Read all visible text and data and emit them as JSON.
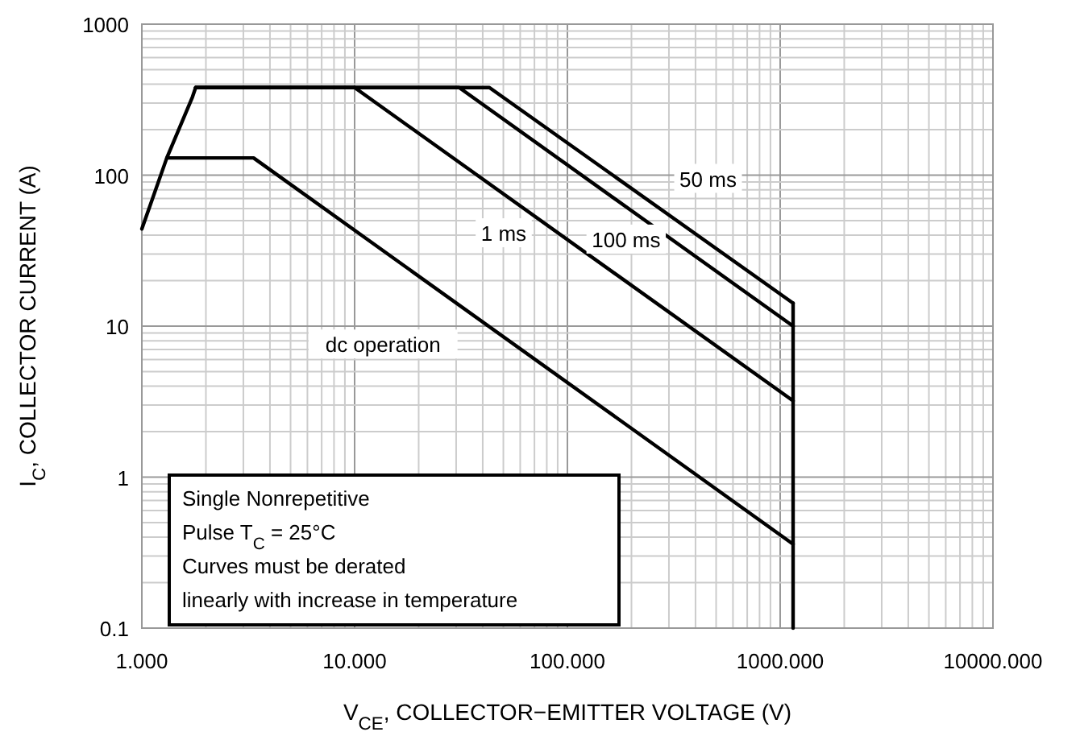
{
  "chart_data": {
    "type": "line",
    "xlabel": "V$_{CE}$, COLLECTOR−EMITTER VOLTAGE (V)",
    "ylabel": "I$_{C}$, COLLECTOR CURRENT (A)",
    "log": "xy",
    "grid": true,
    "marker": "none",
    "line_style": "solid",
    "xlim": [
      1,
      10000
    ],
    "xticks": [
      {
        "value": 1,
        "label": "1.000"
      },
      {
        "value": 10,
        "label": "10.000"
      },
      {
        "value": 100,
        "label": "100.000"
      },
      {
        "value": 1000,
        "label": "1000.000"
      },
      {
        "value": 10000,
        "label": "10000.000"
      }
    ],
    "ylim": [
      0.1,
      1000
    ],
    "yticks": [
      0.1,
      1,
      10,
      100,
      1000
    ],
    "series": [
      {
        "color": "#000000",
        "x": [
          1,
          1.31,
          1.73,
          1.79
        ],
        "values": [
          44,
          130,
          330,
          380
        ]
      },
      {
        "name": "dc operation",
        "color": "#000000",
        "x": [
          1.31,
          3.35,
          1150
        ],
        "values": [
          130,
          130,
          0.36
        ]
      },
      {
        "name": "1 ms",
        "color": "#000000",
        "x": [
          1.79,
          10,
          1150
        ],
        "values": [
          380,
          380,
          3.2
        ]
      },
      {
        "name": "100 ms",
        "color": "#000000",
        "x": [
          1.79,
          31,
          1150
        ],
        "values": [
          380,
          380,
          10
        ]
      },
      {
        "name": "50 ms",
        "color": "#000000",
        "x": [
          1.79,
          43,
          1150
        ],
        "values": [
          380,
          380,
          14.2
        ]
      },
      {
        "color": "#000000",
        "x": [
          1150,
          1150
        ],
        "values": [
          14.2,
          0.1
        ]
      }
    ],
    "annotations": [
      "Single Nonrepetitive\nPulse T$_{C}$ = 25°C\nCurves must be derated\nlinearly with increase in temperature"
    ]
  }
}
